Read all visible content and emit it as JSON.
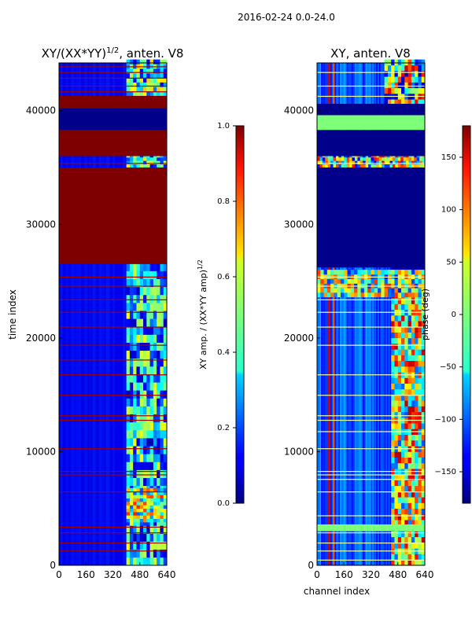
{
  "suptitle": "2016-02-24 0.0-24.0",
  "chart_data": [
    {
      "type": "heatmap",
      "title_main": "XY/(XX*YY)",
      "title_exp": "1/2",
      "title_rest": ", anten. V8",
      "xlabel": "",
      "ylabel": "time index",
      "xlim": [
        0,
        640
      ],
      "ylim": [
        0,
        44200
      ],
      "xticks": [
        "0",
        "160",
        "320",
        "480",
        "640"
      ],
      "yticks": [
        "0",
        "10000",
        "20000",
        "30000",
        "40000"
      ],
      "background": "blue low amplitude with saturated red flagged blocks",
      "colorbar": {
        "label_main": "XY amp. / (XX*YY amp)",
        "label_exp": "1/2",
        "range": [
          0,
          1
        ],
        "ticks": [
          "0.0",
          "0.2",
          "0.4",
          "0.6",
          "0.8",
          "1.0"
        ]
      }
    },
    {
      "type": "heatmap",
      "title": "XY, anten. V8",
      "xlabel": "channel index",
      "ylabel": "",
      "xlim": [
        0,
        640
      ],
      "ylim": [
        0,
        44200
      ],
      "xticks": [
        "0",
        "160",
        "320",
        "480",
        "640"
      ],
      "yticks": [
        "0",
        "10000",
        "20000",
        "30000",
        "40000"
      ],
      "colorbar": {
        "label": "phase (deg)",
        "range": [
          -180,
          180
        ],
        "ticks": [
          "−150",
          "−100",
          "−50",
          "0",
          "50",
          "100",
          "150"
        ]
      }
    }
  ]
}
